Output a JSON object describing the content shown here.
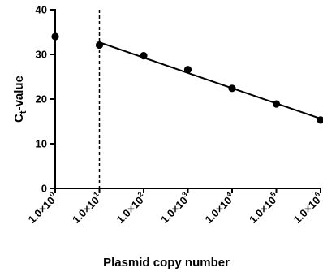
{
  "chart_data": {
    "type": "scatter",
    "xlabel": "Plasmid copy number",
    "ylabel": {
      "main": "C",
      "sub": "t",
      "suffix": "-value"
    },
    "x_scale": "log",
    "xlim": [
      1,
      1000000
    ],
    "ylim": [
      0,
      40
    ],
    "y_ticks": [
      "0",
      "10",
      "20",
      "30",
      "40"
    ],
    "x_ticks": [
      {
        "value": 1,
        "mantissa": "1.0",
        "times": "×",
        "base": "10",
        "exp": "0"
      },
      {
        "value": 10,
        "mantissa": "1.0",
        "times": "×",
        "base": "10",
        "exp": "1"
      },
      {
        "value": 100,
        "mantissa": "1.0",
        "times": "×",
        "base": "10",
        "exp": "2"
      },
      {
        "value": 1000,
        "mantissa": "1.0",
        "times": "×",
        "base": "10",
        "exp": "3"
      },
      {
        "value": 10000,
        "mantissa": "1.0",
        "times": "×",
        "base": "10",
        "exp": "4"
      },
      {
        "value": 100000,
        "mantissa": "1.0",
        "times": "×",
        "base": "10",
        "exp": "5"
      },
      {
        "value": 1000000,
        "mantissa": "1.0",
        "times": "×",
        "base": "10",
        "exp": "6"
      }
    ],
    "points": [
      {
        "x": 1,
        "y": 34.0
      },
      {
        "x": 10,
        "y": 32.1
      },
      {
        "x": 100,
        "y": 29.7
      },
      {
        "x": 1000,
        "y": 26.6
      },
      {
        "x": 10000,
        "y": 22.4
      },
      {
        "x": 100000,
        "y": 18.9
      },
      {
        "x": 1000000,
        "y": 15.3
      }
    ],
    "fit_line": {
      "x": [
        10,
        1000000
      ],
      "y": [
        32.7,
        15.6
      ]
    },
    "reference_line": {
      "x": 10,
      "style": "dashed"
    },
    "grid": false,
    "legend": "none"
  }
}
